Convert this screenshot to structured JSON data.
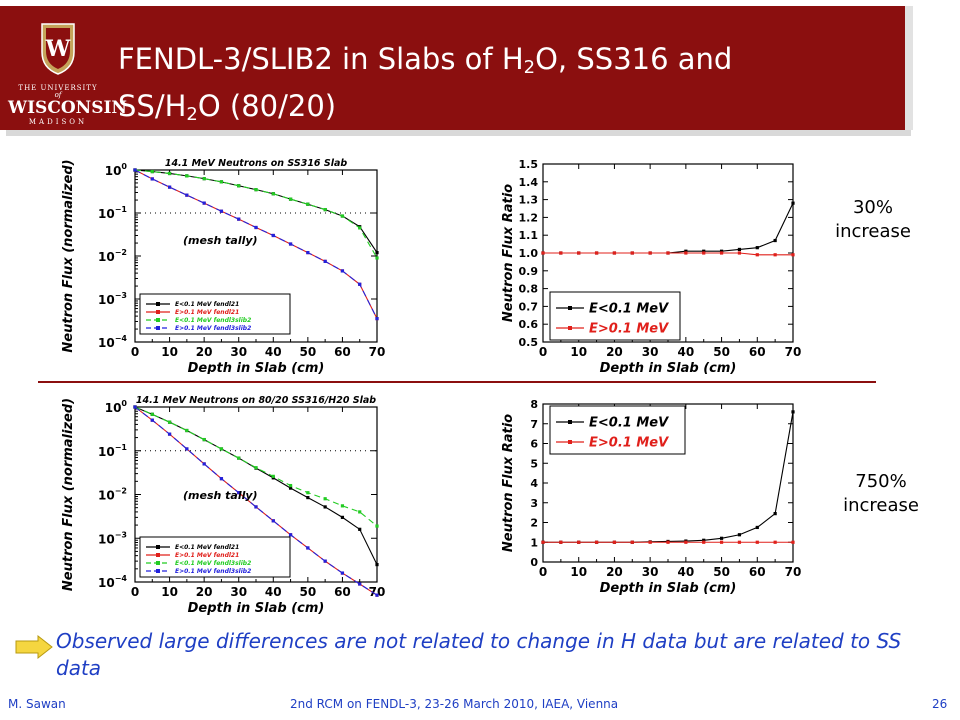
{
  "header": {
    "logo": {
      "line1": "THE UNIVERSITY",
      "line2": "of",
      "line3": "WISCONSIN",
      "line4": "MADISON"
    },
    "title_parts": [
      "FENDL-3/SLIB2 in Slabs of H",
      "2",
      "O, SS316 and",
      "SS/H",
      "2",
      "O (80/20)"
    ]
  },
  "notes": {
    "top": {
      "pct": "30%",
      "word": "increase"
    },
    "bottom": {
      "pct": "750%",
      "word": "increase"
    }
  },
  "observation": "Observed large differences are not related to change in H data but are related to SS data",
  "footer": {
    "author": "M. Sawan",
    "event": "2nd RCM on FENDL-3, 23-26 March 2010, IAEA, Vienna",
    "page": "26"
  },
  "colors": {
    "banner": "#8b0f0f",
    "accent_text": "#1f3fc4",
    "black": "#000000",
    "red": "#e0201b",
    "green": "#22cc22",
    "blue": "#2222dd"
  },
  "chart_data": [
    {
      "type": "line",
      "title": "14.1 MeV Neutrons on SS316 Slab",
      "annotation": "(mesh tally)",
      "xlabel": "Depth in Slab (cm)",
      "ylabel": "Neutron Flux (normalized)",
      "yscale": "log",
      "xlim": [
        0,
        70
      ],
      "ylim": [
        0.0001,
        1
      ],
      "xticks": [
        "0",
        "10",
        "20",
        "30",
        "40",
        "50",
        "60",
        "70"
      ],
      "yticks": [
        {
          "base": "10",
          "exp": "0"
        },
        {
          "base": "10",
          "exp": "−1"
        },
        {
          "base": "10",
          "exp": "−2"
        },
        {
          "base": "10",
          "exp": "−3"
        },
        {
          "base": "10",
          "exp": "−4"
        }
      ],
      "reference_line": 0.1,
      "x": [
        0,
        5,
        10,
        15,
        20,
        25,
        30,
        35,
        40,
        45,
        50,
        55,
        60,
        65,
        70
      ],
      "series": [
        {
          "name": "E<0.1 MeV fendl21",
          "color": "#000000",
          "dash": "solid",
          "values": [
            1,
            0.92,
            0.83,
            0.73,
            0.63,
            0.53,
            0.43,
            0.35,
            0.28,
            0.21,
            0.16,
            0.12,
            0.085,
            0.048,
            0.012
          ]
        },
        {
          "name": "E>0.1 MeV fendl21",
          "color": "#e0201b",
          "dash": "solid",
          "values": [
            1,
            0.62,
            0.4,
            0.26,
            0.17,
            0.11,
            0.072,
            0.046,
            0.03,
            0.019,
            0.012,
            0.0075,
            0.0045,
            0.0022,
            0.00035
          ]
        },
        {
          "name": "E<0.1 MeV fendl3slib2",
          "color": "#22cc22",
          "dash": "dash",
          "values": [
            1,
            0.92,
            0.83,
            0.73,
            0.63,
            0.53,
            0.43,
            0.35,
            0.28,
            0.21,
            0.16,
            0.12,
            0.085,
            0.045,
            0.009
          ]
        },
        {
          "name": "E>0.1 MeV fendl3slib2",
          "color": "#2222dd",
          "dash": "dash",
          "values": [
            1,
            0.62,
            0.4,
            0.26,
            0.17,
            0.11,
            0.072,
            0.046,
            0.03,
            0.019,
            0.012,
            0.0075,
            0.0045,
            0.0022,
            0.00035
          ]
        }
      ]
    },
    {
      "type": "line",
      "xlabel": "Depth in Slab (cm)",
      "ylabel": "Neutron Flux Ratio",
      "xlim": [
        0,
        70
      ],
      "ylim": [
        0.5,
        1.5
      ],
      "xticks": [
        "0",
        "10",
        "20",
        "30",
        "40",
        "50",
        "60",
        "70"
      ],
      "yticks": [
        "0.5",
        "0.6",
        "0.7",
        "0.8",
        "0.9",
        "1.0",
        "1.1",
        "1.2",
        "1.3",
        "1.4",
        "1.5"
      ],
      "legend_position": "bottom-left",
      "x": [
        0,
        5,
        10,
        15,
        20,
        25,
        30,
        35,
        40,
        45,
        50,
        55,
        60,
        65,
        70
      ],
      "series": [
        {
          "name": "E<0.1 MeV",
          "color": "#000000",
          "values": [
            1,
            1,
            1,
            1,
            1,
            1,
            1,
            1,
            1.01,
            1.01,
            1.01,
            1.02,
            1.03,
            1.07,
            1.28
          ]
        },
        {
          "name": "E>0.1 MeV",
          "color": "#e0201b",
          "values": [
            1,
            1,
            1,
            1,
            1,
            1,
            1,
            1,
            1,
            1,
            1,
            1,
            0.99,
            0.99,
            0.99
          ]
        }
      ]
    },
    {
      "type": "line",
      "title": "14.1 MeV Neutrons on 80/20 SS316/H20 Slab",
      "annotation": "(mesh tally)",
      "xlabel": "Depth in Slab (cm)",
      "ylabel": "Neutron Flux (normalized)",
      "yscale": "log",
      "xlim": [
        0,
        70
      ],
      "ylim": [
        0.0001,
        1
      ],
      "xticks": [
        "0",
        "10",
        "20",
        "30",
        "40",
        "50",
        "60",
        "70"
      ],
      "yticks": [
        {
          "base": "10",
          "exp": "0"
        },
        {
          "base": "10",
          "exp": "−1"
        },
        {
          "base": "10",
          "exp": "−2"
        },
        {
          "base": "10",
          "exp": "−3"
        },
        {
          "base": "10",
          "exp": "−4"
        }
      ],
      "reference_line": 0.1,
      "x": [
        0,
        5,
        10,
        15,
        20,
        25,
        30,
        35,
        40,
        45,
        50,
        55,
        60,
        65,
        70
      ],
      "series": [
        {
          "name": "E<0.1 MeV fendl21",
          "color": "#000000",
          "dash": "solid",
          "values": [
            1,
            0.68,
            0.45,
            0.29,
            0.18,
            0.11,
            0.068,
            0.04,
            0.024,
            0.014,
            0.0085,
            0.0052,
            0.003,
            0.0016,
            0.00025
          ]
        },
        {
          "name": "E>0.1 MeV fendl21",
          "color": "#e0201b",
          "dash": "solid",
          "values": [
            1,
            0.5,
            0.24,
            0.11,
            0.05,
            0.023,
            0.011,
            0.0052,
            0.0025,
            0.0012,
            0.0006,
            0.0003,
            0.00016,
            9e-05,
            5e-05
          ]
        },
        {
          "name": "E<0.1 MeV fendl3slib2",
          "color": "#22cc22",
          "dash": "dash",
          "values": [
            1,
            0.68,
            0.45,
            0.29,
            0.18,
            0.11,
            0.068,
            0.041,
            0.026,
            0.016,
            0.011,
            0.008,
            0.0055,
            0.004,
            0.0019
          ]
        },
        {
          "name": "E>0.1 MeV fendl3slib2",
          "color": "#2222dd",
          "dash": "dash",
          "values": [
            1,
            0.5,
            0.24,
            0.11,
            0.05,
            0.023,
            0.011,
            0.0052,
            0.0025,
            0.0012,
            0.0006,
            0.0003,
            0.00016,
            9e-05,
            5e-05
          ]
        }
      ]
    },
    {
      "type": "line",
      "xlabel": "Depth in Slab (cm)",
      "ylabel": "Neutron Flux Ratio",
      "xlim": [
        0,
        70
      ],
      "ylim": [
        0,
        8
      ],
      "xticks": [
        "0",
        "10",
        "20",
        "30",
        "40",
        "50",
        "60",
        "70"
      ],
      "yticks": [
        "0",
        "1",
        "2",
        "3",
        "4",
        "5",
        "6",
        "7",
        "8"
      ],
      "legend_position": "top-left",
      "x": [
        0,
        5,
        10,
        15,
        20,
        25,
        30,
        35,
        40,
        45,
        50,
        55,
        60,
        65,
        70
      ],
      "series": [
        {
          "name": "E<0.1 MeV",
          "color": "#000000",
          "values": [
            1,
            1,
            1,
            1,
            1,
            1,
            1.02,
            1.04,
            1.06,
            1.1,
            1.2,
            1.38,
            1.75,
            2.45,
            7.6
          ]
        },
        {
          "name": "E>0.1 MeV",
          "color": "#e0201b",
          "values": [
            1,
            1,
            1,
            1,
            1,
            1,
            1,
            1,
            1,
            1,
            1,
            1,
            1,
            1,
            1
          ]
        }
      ]
    }
  ]
}
